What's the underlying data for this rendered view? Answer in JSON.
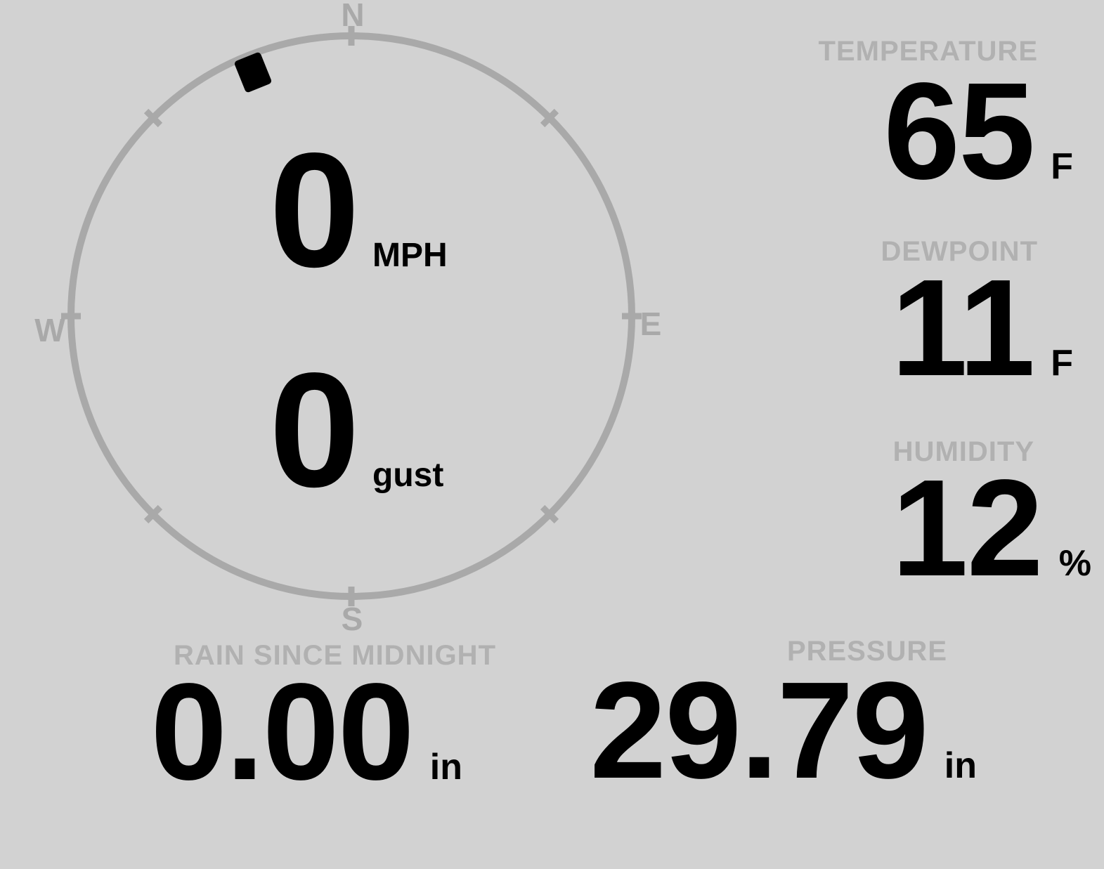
{
  "theme": {
    "background": "#d2d2d2",
    "dial_color": "#a9a9a9",
    "label_color": "#b1b1b1",
    "value_color": "#000000"
  },
  "wind": {
    "speed": "0",
    "speed_unit": "MPH",
    "gust": "0",
    "gust_label": "gust",
    "direction_degrees": 338,
    "compass": {
      "north": "N",
      "east": "E",
      "south": "S",
      "west": "W"
    }
  },
  "readings": {
    "temperature": {
      "label": "TEMPERATURE",
      "value": "65",
      "unit": "F"
    },
    "dewpoint": {
      "label": "DEWPOINT",
      "value": "11",
      "unit": "F"
    },
    "humidity": {
      "label": "HUMIDITY",
      "value": "12",
      "unit": "%"
    },
    "rain": {
      "label": "RAIN SINCE MIDNIGHT",
      "value": "0.00",
      "unit": "in"
    },
    "pressure": {
      "label": "PRESSURE",
      "value": "29.79",
      "unit": "in"
    }
  }
}
